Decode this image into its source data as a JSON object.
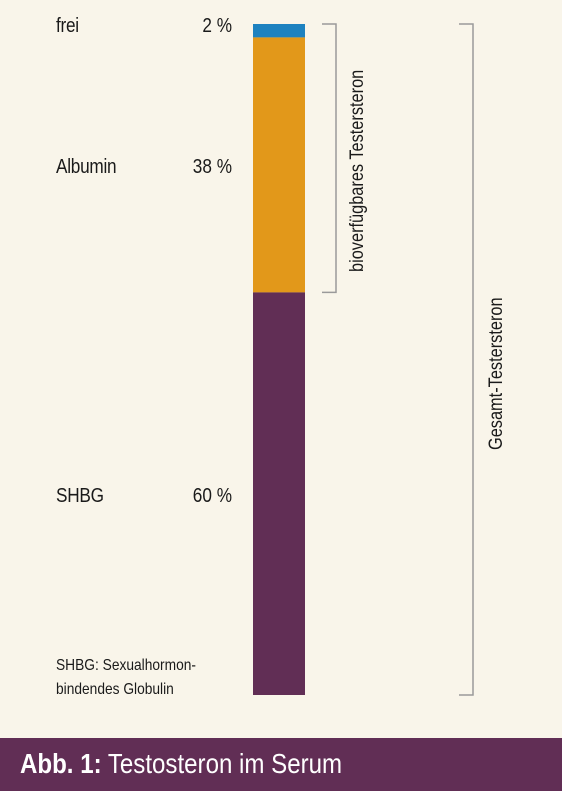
{
  "chart_data": {
    "type": "bar",
    "orientation": "stacked-vertical",
    "categories": [
      "frei",
      "Albumin",
      "SHBG"
    ],
    "values": [
      2,
      38,
      60
    ],
    "value_labels": [
      "2 %",
      "38 %",
      "60 %"
    ],
    "unit": "%",
    "colors": [
      "#1e82c0",
      "#e2981a",
      "#612e55"
    ],
    "brackets": [
      {
        "label": "bioverfügbares Testersteron",
        "covers": [
          "frei",
          "Albumin"
        ]
      },
      {
        "label": "Gesamt-Testersteron",
        "covers": [
          "frei",
          "Albumin",
          "SHBG"
        ]
      }
    ]
  },
  "footnote": {
    "line1": "SHBG: Sexualhormon-",
    "line2": "bindendes Globulin"
  },
  "caption": {
    "prefix": "Abb. 1:",
    "text": "Testosteron im Serum"
  },
  "colors": {
    "background": "#f9f5ea",
    "caption_bar": "#612e55",
    "bracket": "#9a9a9a"
  }
}
